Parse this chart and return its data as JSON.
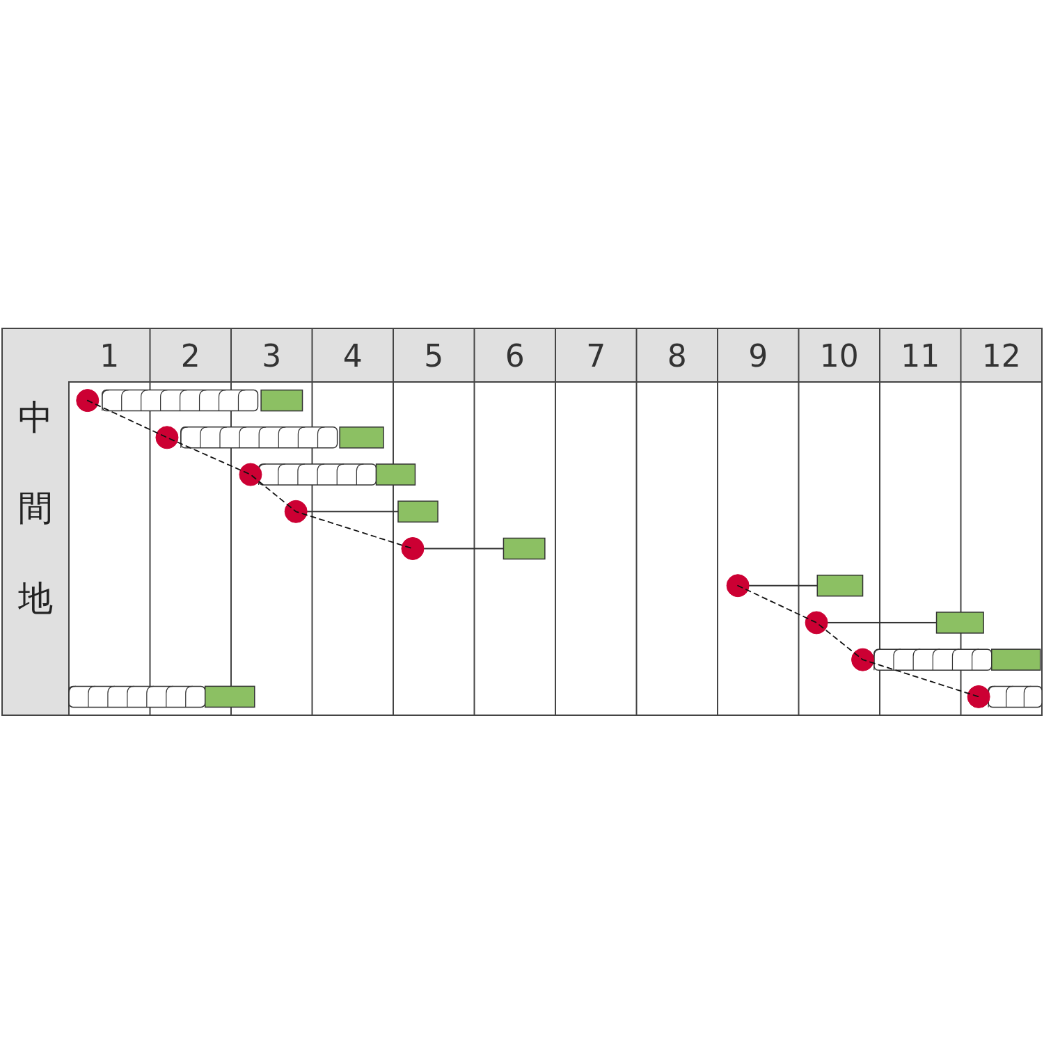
{
  "chart_data": {
    "type": "bar",
    "orientation": "horizontal",
    "ylabel": "中間地",
    "categories": [
      null,
      null,
      null,
      null,
      null,
      null,
      null,
      null,
      null
    ],
    "xlim": [
      1,
      13
    ],
    "xticks": [
      {
        "value": 1.5,
        "label": "1"
      },
      {
        "value": 2.5,
        "label": "2"
      },
      {
        "value": 3.5,
        "label": "3"
      },
      {
        "value": 4.5,
        "label": "4"
      },
      {
        "value": 5.5,
        "label": "5"
      },
      {
        "value": 6.5,
        "label": "6"
      },
      {
        "value": 7.5,
        "label": "7"
      },
      {
        "value": 8.5,
        "label": "8"
      },
      {
        "value": 9.5,
        "label": "9"
      },
      {
        "value": 10.5,
        "label": "10"
      },
      {
        "value": 11.5,
        "label": "11"
      },
      {
        "value": 12.5,
        "label": "12"
      }
    ],
    "tick_labels": "x",
    "series": [
      {
        "type": "bar",
        "color": "#ffffff",
        "base": [
          1.41,
          2.38,
          3.34,
          null,
          null,
          null,
          null,
          10.93,
          12.34
        ],
        "values": [
          1.92,
          1.93,
          1.45,
          null,
          null,
          null,
          null,
          1.45,
          0.66
        ]
      },
      {
        "type": "bar",
        "color": "#ffffff",
        "base": [
          null,
          null,
          null,
          null,
          null,
          null,
          null,
          null,
          1.0
        ],
        "values": [
          null,
          null,
          null,
          null,
          null,
          null,
          null,
          null,
          1.68
        ]
      },
      {
        "type": "bar",
        "color": "#8cc063",
        "base": [
          3.37,
          4.34,
          4.79,
          5.06,
          6.36,
          10.23,
          11.7,
          12.38,
          2.68
        ],
        "values": [
          0.51,
          0.54,
          0.48,
          0.49,
          0.51,
          0.56,
          0.58,
          0.6,
          0.61
        ]
      },
      {
        "type": "bar",
        "color": "#333333",
        "base": [
          null,
          null,
          null,
          3.8,
          5.24,
          9.25,
          10.22,
          null,
          null
        ],
        "values": [
          null,
          null,
          null,
          1.26,
          1.12,
          0.98,
          1.48,
          null,
          null
        ]
      },
      {
        "type": "line",
        "line_style": "dashed",
        "color": "#111111",
        "values": [
          1.23,
          2.21,
          3.24,
          3.8,
          5.24,
          null,
          null,
          null,
          null
        ]
      },
      {
        "type": "line",
        "line_style": "dashed",
        "color": "#111111",
        "values": [
          null,
          null,
          null,
          null,
          null,
          9.25,
          10.22,
          10.79,
          12.22
        ]
      },
      {
        "type": "scatter",
        "marker": "circle",
        "color": "#cc0033",
        "values": [
          1.23,
          2.21,
          3.24,
          3.8,
          5.24,
          9.25,
          10.22,
          10.79,
          12.22
        ]
      }
    ]
  }
}
